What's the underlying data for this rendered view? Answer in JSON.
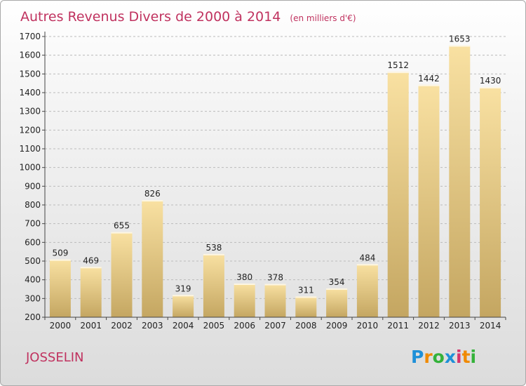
{
  "title": "Autres Revenus Divers de 2000 à 2014",
  "unit": "(en milliers d'€)",
  "city": "JOSSELIN",
  "logo": "Proxiti",
  "logo_colors": [
    "#1e90d8",
    "#f08a00",
    "#34b23a",
    "#1e90d8",
    "#d6336c",
    "#f08a00",
    "#34b23a"
  ],
  "colors": {
    "title": "#c0325f",
    "bar_light": "#f9e1a2",
    "bar_dark": "#c4a661",
    "grid": "#bbbbbb"
  },
  "chart_data": {
    "type": "bar",
    "categories": [
      "2000",
      "2001",
      "2002",
      "2003",
      "2004",
      "2005",
      "2006",
      "2007",
      "2008",
      "2009",
      "2010",
      "2011",
      "2012",
      "2013",
      "2014"
    ],
    "values": [
      509,
      469,
      655,
      826,
      319,
      538,
      380,
      378,
      311,
      354,
      484,
      1512,
      1442,
      1653,
      1430
    ],
    "ylim": [
      200,
      1700
    ],
    "yticks": [
      200,
      300,
      400,
      500,
      600,
      700,
      800,
      900,
      1000,
      1100,
      1200,
      1300,
      1400,
      1500,
      1600,
      1700
    ],
    "grid": true
  }
}
